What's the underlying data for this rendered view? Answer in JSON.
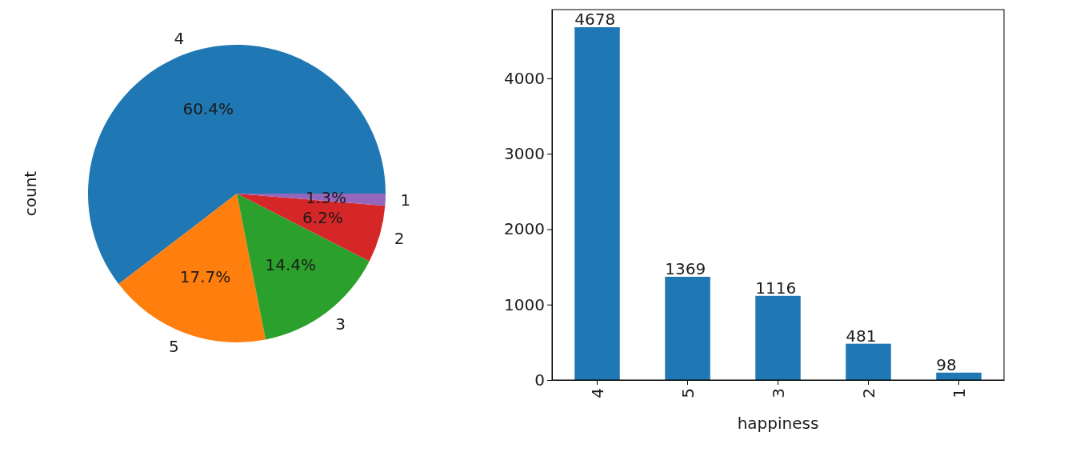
{
  "chart_data": [
    {
      "type": "pie",
      "ylabel": "count",
      "categories": [
        "4",
        "5",
        "3",
        "2",
        "1"
      ],
      "values": [
        60.4,
        17.7,
        14.4,
        6.2,
        1.3
      ],
      "colors": [
        "#1f77b4",
        "#ff7f0e",
        "#2ca02c",
        "#d62728",
        "#9467bd"
      ],
      "value_labels": [
        "60.4%",
        "17.7%",
        "14.4%",
        "6.2%",
        "1.3%"
      ]
    },
    {
      "type": "bar",
      "xlabel": "happiness",
      "categories": [
        "4",
        "5",
        "3",
        "2",
        "1"
      ],
      "values": [
        4678,
        1369,
        1116,
        481,
        98
      ],
      "color": "#1f77b4",
      "ylim": [
        0,
        4912
      ],
      "yticks": [
        0,
        1000,
        2000,
        3000,
        4000
      ],
      "data_labels": true
    }
  ]
}
